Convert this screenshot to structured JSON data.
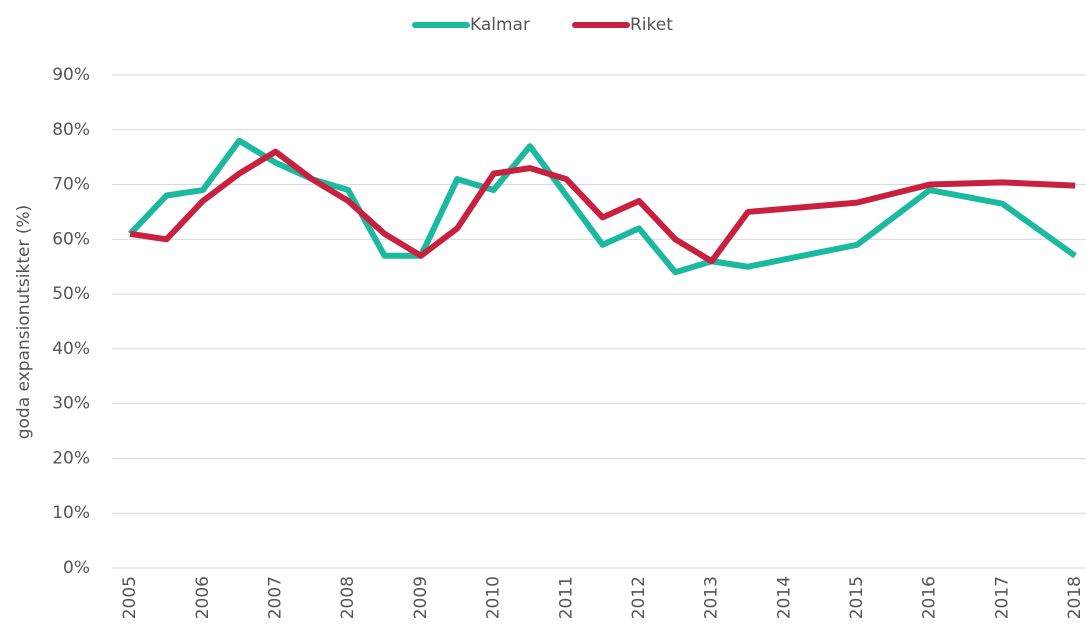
{
  "chart_data": {
    "type": "line",
    "y_label": "goda expansionutsikter (%)",
    "x": [
      2005,
      2005.5,
      2006,
      2006.5,
      2007,
      2007.5,
      2008,
      2008.5,
      2009,
      2009.5,
      2010,
      2010.5,
      2011,
      2011.5,
      2012,
      2012.5,
      2013,
      2013.5,
      2015,
      2016,
      2017,
      2018
    ],
    "series": [
      {
        "name": "Kalmar",
        "color": "#1ab9a0",
        "values": [
          61,
          68,
          69,
          78,
          74,
          71,
          69,
          57,
          57,
          71,
          69,
          77,
          68,
          59,
          62,
          54,
          56,
          55,
          59,
          69,
          66.5,
          57
        ]
      },
      {
        "name": "Riket",
        "color": "#c8203f",
        "values": [
          61,
          60,
          67,
          72,
          76,
          71,
          67,
          61,
          57,
          62,
          72,
          73,
          71,
          64,
          67,
          60,
          56,
          65,
          66.7,
          70,
          70.4,
          69.8
        ]
      }
    ],
    "xlim": [
      2004.75,
      2018.15
    ],
    "xticks": [
      2005,
      2006,
      2007,
      2008,
      2009,
      2010,
      2011,
      2012,
      2013,
      2014,
      2015,
      2016,
      2017,
      2018
    ],
    "ylim": [
      0,
      90
    ],
    "yticks": [
      {
        "value": 0,
        "label": "0%"
      },
      {
        "value": 10,
        "label": "10%"
      },
      {
        "value": 20,
        "label": "20%"
      },
      {
        "value": 30,
        "label": "30%"
      },
      {
        "value": 40,
        "label": "40%"
      },
      {
        "value": 50,
        "label": "50%"
      },
      {
        "value": 60,
        "label": "60%"
      },
      {
        "value": 70,
        "label": "70%"
      },
      {
        "value": 80,
        "label": "80%"
      },
      {
        "value": 90,
        "label": "90%"
      }
    ],
    "grid": true,
    "legend": "top"
  }
}
